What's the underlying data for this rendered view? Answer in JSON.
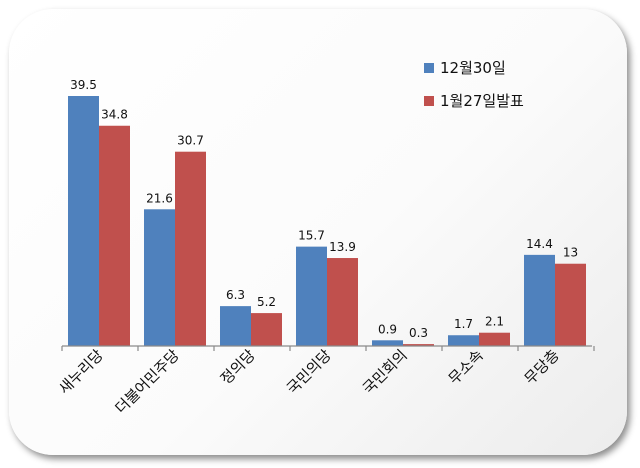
{
  "chart_data": {
    "type": "bar",
    "categories": [
      "새누리당",
      "더불어민주당",
      "정의당",
      "국민의당",
      "국민회의",
      "무소속",
      "무당층"
    ],
    "series": [
      {
        "name": "12월30일",
        "color": "#4f81bd",
        "values": [
          39.5,
          21.6,
          6.3,
          15.7,
          0.9,
          1.7,
          14.4
        ]
      },
      {
        "name": "1월27일발표",
        "color": "#c0504d",
        "values": [
          34.8,
          30.7,
          5.2,
          13.9,
          0.3,
          2.1,
          13
        ]
      }
    ],
    "ylim": [
      0,
      40
    ],
    "grid": false,
    "legend_position": "top-right",
    "data_labels": [
      [
        "39.5",
        "21.6",
        "6.3",
        "15.7",
        "0.9",
        "1.7",
        "14.4"
      ],
      [
        "34.8",
        "30.7",
        "5.2",
        "13.9",
        "0.3",
        "2.1",
        "13"
      ]
    ]
  }
}
